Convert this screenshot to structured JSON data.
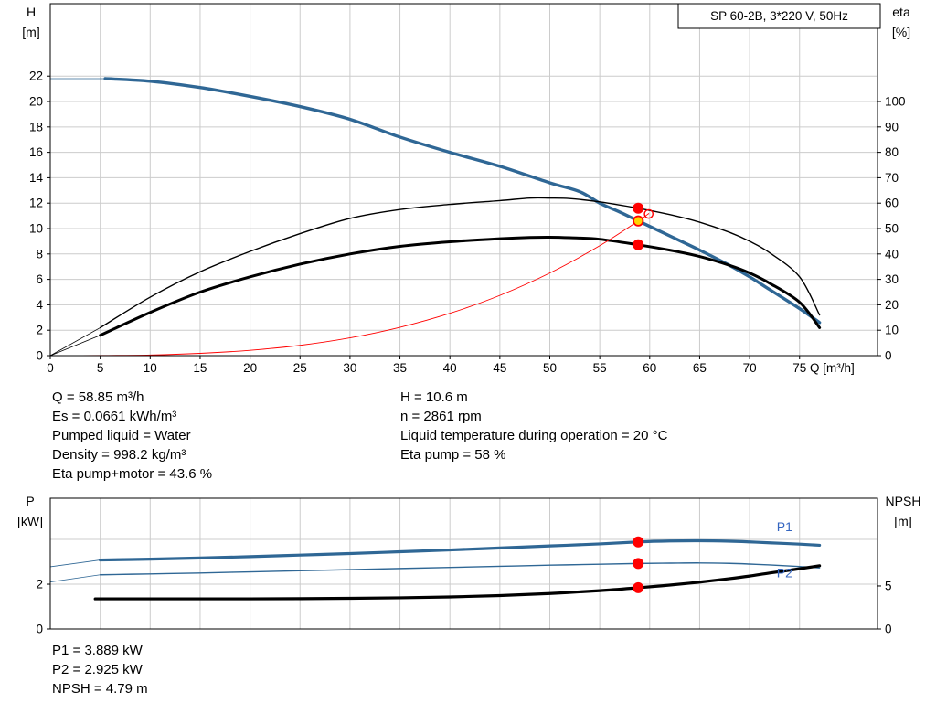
{
  "title_box": "SP 60-2B, 3*220 V, 50Hz",
  "colors": {
    "curve_blue": "#2f6795",
    "label_blue": "#3465c0",
    "red": "#ff0000",
    "yellow": "#ffd400",
    "grid": "#cccccc",
    "black": "#000000"
  },
  "info": {
    "left_column": [
      "Q = 58.85 m³/h",
      "Es = 0.0661 kWh/m³",
      "Pumped liquid = Water",
      "Density = 998.2 kg/m³",
      "Eta pump+motor = 43.6 %"
    ],
    "right_column": [
      "H = 10.6 m",
      "n = 2861 rpm",
      "Liquid temperature during operation = 20 °C",
      "Eta pump = 58 %"
    ],
    "bottom": [
      "P1 = 3.889 kW",
      "P2 = 2.925 kW",
      "NPSH = 4.79 m"
    ]
  },
  "chart_data": [
    {
      "id": "hq",
      "type": "line",
      "title": "SP 60-2B, 3*220 V, 50Hz",
      "title_box": "SP 60-2B, 3*220 V, 50Hz",
      "x_axis": {
        "min": 0,
        "max": 82.8,
        "ticks": [
          0,
          5,
          10,
          15,
          20,
          25,
          30,
          35,
          40,
          45,
          50,
          55,
          60,
          65,
          70,
          75
        ],
        "grid": [
          5,
          10,
          15,
          20,
          25,
          30,
          35,
          40,
          45,
          50,
          55,
          60,
          65,
          70,
          75
        ],
        "show_labels": true,
        "label": "Q [m³/h]"
      },
      "left_axis": {
        "title": [
          "H",
          "[m]"
        ],
        "min": 0,
        "max": 27.7,
        "ticks": [
          0,
          2,
          4,
          6,
          8,
          10,
          12,
          14,
          16,
          18,
          20,
          22
        ],
        "grid": [
          2,
          4,
          6,
          8,
          10,
          12,
          14,
          16,
          18,
          20,
          22
        ]
      },
      "right_axis": {
        "title": [
          "eta",
          "[%]"
        ],
        "min": 0,
        "max": 138.5,
        "ticks": [
          0,
          10,
          20,
          30,
          40,
          50,
          60,
          70,
          80,
          90,
          100
        ]
      },
      "series": [
        {
          "name": "H curve",
          "axis": "left",
          "color": "#2f6795",
          "width": 3.4,
          "lead": [
            0,
            21.8
          ],
          "x": [
            5.5,
            10,
            15,
            20,
            25,
            30,
            35,
            40,
            45,
            50,
            53,
            55,
            57,
            58.85,
            61,
            63,
            65,
            68,
            70,
            72,
            75,
            77
          ],
          "y": [
            21.8,
            21.6,
            21.1,
            20.4,
            19.6,
            18.6,
            17.2,
            16.0,
            14.9,
            13.6,
            12.9,
            12.0,
            11.3,
            10.6,
            9.8,
            9.05,
            8.3,
            7.1,
            6.2,
            5.2,
            3.7,
            2.6
          ]
        },
        {
          "name": "eta pump",
          "axis": "right",
          "color": "#000000",
          "width": 1.4,
          "lead": [
            0,
            0
          ],
          "x": [
            5,
            10,
            15,
            20,
            25,
            30,
            35,
            40,
            45,
            48,
            50,
            52,
            55,
            58.85,
            62,
            65,
            68,
            70,
            72,
            75,
            77
          ],
          "y": [
            11,
            23,
            33,
            41,
            48,
            54,
            57.5,
            59.5,
            61,
            62,
            62,
            61.8,
            60.5,
            58,
            55.5,
            52.5,
            48.5,
            45,
            40.5,
            31,
            16
          ]
        },
        {
          "name": "eta pump plus motor",
          "axis": "right",
          "color": "#000000",
          "width": 3,
          "lead": [
            0,
            0
          ],
          "x": [
            5,
            10,
            15,
            20,
            25,
            30,
            35,
            40,
            45,
            48,
            50,
            52,
            55,
            58.85,
            62,
            65,
            68,
            70,
            72,
            75,
            77
          ],
          "y": [
            8,
            17,
            25,
            31,
            36,
            40,
            43,
            44.8,
            46,
            46.5,
            46.6,
            46.4,
            45.8,
            43.6,
            41.5,
            39,
            35.5,
            32.5,
            28.5,
            21,
            11
          ]
        },
        {
          "name": "system resistance curve",
          "axis": "left",
          "color": "#ff0000",
          "width": 0.9,
          "x": [
            0,
            5,
            10,
            15,
            20,
            25,
            30,
            35,
            40,
            45,
            50,
            55,
            58.85,
            59.9
          ],
          "y": [
            0,
            0.01,
            0.05,
            0.18,
            0.42,
            0.81,
            1.4,
            2.23,
            3.33,
            4.74,
            6.5,
            8.65,
            10.6,
            11.18
          ]
        }
      ],
      "markers": [
        {
          "name": "eta-pump-point",
          "axis": "right",
          "x": 58.85,
          "y": 58,
          "r": 5.5,
          "fill": "#ff0000",
          "stroke": "#ff0000"
        },
        {
          "name": "eta-total-point",
          "axis": "right",
          "x": 58.85,
          "y": 43.6,
          "r": 5.5,
          "fill": "#ff0000",
          "stroke": "#ff0000"
        },
        {
          "name": "duty-point",
          "axis": "left",
          "x": 58.85,
          "y": 10.6,
          "r": 5.2,
          "fill": "#ffd400",
          "stroke": "#ff0000",
          "stroke_width": 1.8
        },
        {
          "name": "max-operating-point",
          "axis": "left",
          "x": 59.9,
          "y": 11.15,
          "r": 4.6,
          "fill": "none",
          "stroke": "#ff0000",
          "stroke_width": 1.4
        }
      ]
    },
    {
      "id": "power",
      "type": "line",
      "title": "Power and NPSH",
      "x_axis": {
        "min": 0,
        "max": 82.8,
        "ticks": [],
        "grid": [
          5,
          10,
          15,
          20,
          25,
          30,
          35,
          40,
          45,
          50,
          55,
          60,
          65,
          70,
          75
        ],
        "show_labels": false,
        "label": ""
      },
      "left_axis": {
        "title": [
          "P",
          "[kW]"
        ],
        "min": 0,
        "max": 5.84,
        "ticks": [
          0,
          2
        ],
        "grid": [
          2,
          4
        ]
      },
      "right_axis": {
        "title": [
          "NPSH",
          "[m]"
        ],
        "min": 0,
        "max": 15.2,
        "ticks": [
          0,
          5
        ]
      },
      "series": [
        {
          "name": "P1",
          "axis": "left",
          "color": "#2f6795",
          "width": 3.2,
          "lead": [
            0,
            2.78
          ],
          "x": [
            5,
            10,
            15,
            20,
            25,
            30,
            35,
            40,
            45,
            50,
            55,
            58.85,
            62,
            65,
            68,
            70,
            72,
            75,
            77
          ],
          "y": [
            3.08,
            3.12,
            3.17,
            3.23,
            3.3,
            3.37,
            3.45,
            3.53,
            3.62,
            3.71,
            3.8,
            3.889,
            3.93,
            3.94,
            3.92,
            3.89,
            3.85,
            3.79,
            3.74
          ]
        },
        {
          "name": "P2",
          "axis": "left",
          "color": "#2f6795",
          "width": 1.4,
          "lead": [
            0,
            2.1
          ],
          "x": [
            5,
            10,
            15,
            20,
            25,
            30,
            35,
            40,
            45,
            50,
            55,
            58.85,
            62,
            65,
            68,
            70,
            72,
            75,
            77
          ],
          "y": [
            2.42,
            2.46,
            2.5,
            2.55,
            2.6,
            2.65,
            2.7,
            2.75,
            2.8,
            2.85,
            2.89,
            2.925,
            2.94,
            2.95,
            2.93,
            2.9,
            2.86,
            2.79,
            2.73
          ]
        },
        {
          "name": "NPSH",
          "axis": "right",
          "color": "#000000",
          "width": 3.2,
          "x": [
            4.5,
            10,
            15,
            20,
            25,
            30,
            35,
            40,
            45,
            50,
            55,
            58.85,
            62,
            65,
            68,
            70,
            72,
            75,
            77
          ],
          "y": [
            3.5,
            3.5,
            3.5,
            3.5,
            3.52,
            3.56,
            3.62,
            3.72,
            3.88,
            4.12,
            4.45,
            4.79,
            5.1,
            5.45,
            5.85,
            6.15,
            6.5,
            7.0,
            7.35
          ]
        }
      ],
      "markers": [
        {
          "name": "p1-duty-point",
          "axis": "left",
          "x": 58.85,
          "y": 3.889,
          "r": 5.5,
          "fill": "#ff0000",
          "stroke": "#ff0000"
        },
        {
          "name": "p2-duty-point",
          "axis": "left",
          "x": 58.85,
          "y": 2.925,
          "r": 5.5,
          "fill": "#ff0000",
          "stroke": "#ff0000"
        },
        {
          "name": "npsh-duty-point",
          "axis": "right",
          "x": 58.85,
          "y": 4.79,
          "r": 5.5,
          "fill": "#ff0000",
          "stroke": "#ff0000"
        }
      ],
      "text_labels": [
        {
          "text": "P1",
          "axis": "left",
          "x": 73.5,
          "y": 4.38,
          "color": "#3465c0"
        },
        {
          "text": "P2",
          "axis": "left",
          "x": 73.5,
          "y": 2.3,
          "color": "#3465c0"
        }
      ]
    }
  ]
}
